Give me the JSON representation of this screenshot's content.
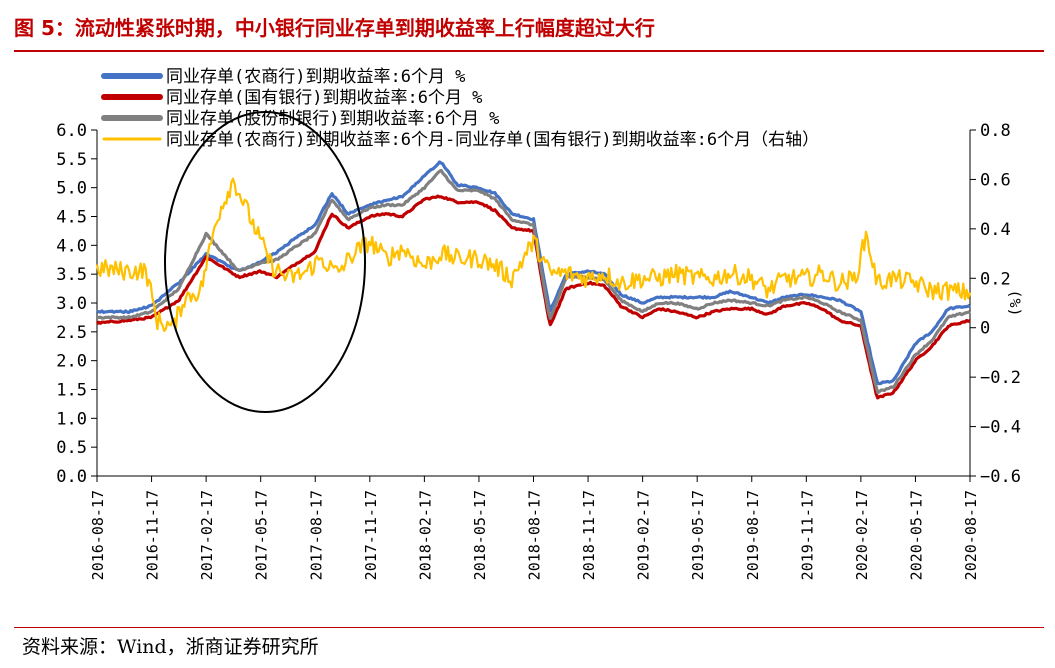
{
  "figure": {
    "title": "图 5：流动性紧张时期，中小银行同业存单到期收益率上行幅度超过大行",
    "source": "资料来源：Wind，浙商证券研究所"
  },
  "chart_data": {
    "type": "line",
    "x_tick_labels": [
      "2016-08-17",
      "2016-11-17",
      "2017-02-17",
      "2017-05-17",
      "2017-08-17",
      "2017-11-17",
      "2018-02-17",
      "2018-05-17",
      "2018-08-17",
      "2018-11-17",
      "2019-02-17",
      "2019-05-17",
      "2019-08-17",
      "2019-11-17",
      "2020-02-17",
      "2020-05-17",
      "2020-08-17"
    ],
    "y_left": {
      "range": [
        0,
        6
      ],
      "ticks": [
        "0.0",
        "0.5",
        "1.0",
        "1.5",
        "2.0",
        "2.5",
        "3.0",
        "3.5",
        "4.0",
        "4.5",
        "5.0",
        "5.5",
        "6.0"
      ]
    },
    "y_right": {
      "range": [
        -0.6,
        0.8
      ],
      "ticks": [
        "0.8",
        "0.6",
        "0.4",
        "0.2",
        "0",
        "−0.2",
        "−0.4",
        "−0.6"
      ],
      "label": "(%)"
    },
    "annotation": "circled region around 2016-12 to 2017-11",
    "series": [
      {
        "name": "同业存单(农商行)到期收益率:6个月 %",
        "color": "#4472c4",
        "axis": "left",
        "t": [
          0,
          0.6,
          1,
          1.5,
          2,
          2.6,
          3,
          3.3,
          3.6,
          4,
          4.3,
          4.6,
          5,
          5.3,
          5.6,
          6,
          6.3,
          6.6,
          7,
          7.3,
          7.6,
          8,
          8.3,
          8.6,
          9,
          9.3,
          9.6,
          10,
          10.3,
          10.6,
          11,
          11.3,
          11.6,
          12,
          12.3,
          12.6,
          13,
          13.3,
          13.6,
          14,
          14.3,
          14.6,
          15,
          15.3,
          15.6,
          16
        ],
        "values": [
          2.85,
          2.85,
          2.95,
          3.35,
          3.85,
          3.55,
          3.72,
          3.88,
          4.1,
          4.35,
          4.9,
          4.55,
          4.7,
          4.78,
          4.85,
          5.2,
          5.45,
          5.05,
          5.0,
          4.9,
          4.55,
          4.45,
          2.85,
          3.5,
          3.55,
          3.5,
          3.15,
          3.0,
          3.1,
          3.1,
          3.1,
          3.1,
          3.2,
          3.1,
          3.0,
          3.1,
          3.15,
          3.1,
          3.05,
          2.85,
          1.6,
          1.65,
          2.3,
          2.5,
          2.9,
          2.95
        ]
      },
      {
        "name": "同业存单(国有银行)到期收益率:6个月 %",
        "color": "#c00000",
        "axis": "left",
        "t": [
          0,
          0.6,
          1,
          1.5,
          2,
          2.6,
          3,
          3.3,
          3.6,
          4,
          4.3,
          4.6,
          5,
          5.3,
          5.6,
          6,
          6.3,
          6.6,
          7,
          7.3,
          7.6,
          8,
          8.3,
          8.6,
          9,
          9.3,
          9.6,
          10,
          10.3,
          10.6,
          11,
          11.3,
          11.6,
          12,
          12.3,
          12.6,
          13,
          13.3,
          13.6,
          14,
          14.3,
          14.6,
          15,
          15.3,
          15.6,
          16
        ],
        "values": [
          2.65,
          2.7,
          2.75,
          3.05,
          3.8,
          3.45,
          3.55,
          3.45,
          3.65,
          3.9,
          4.55,
          4.3,
          4.5,
          4.55,
          4.5,
          4.8,
          4.85,
          4.75,
          4.75,
          4.6,
          4.3,
          4.25,
          2.6,
          3.25,
          3.35,
          3.3,
          2.95,
          2.75,
          2.9,
          2.85,
          2.75,
          2.85,
          2.9,
          2.9,
          2.8,
          2.95,
          3.0,
          2.9,
          2.7,
          2.6,
          1.35,
          1.45,
          2.0,
          2.25,
          2.6,
          2.7
        ]
      },
      {
        "name": "同业存单(股份制银行)到期收益率:6个月 %",
        "color": "#808080",
        "axis": "left",
        "t": [
          0,
          0.6,
          1,
          1.5,
          2,
          2.6,
          3,
          3.3,
          3.6,
          4,
          4.3,
          4.6,
          5,
          5.3,
          5.6,
          6,
          6.3,
          6.6,
          7,
          7.3,
          7.6,
          8,
          8.3,
          8.6,
          9,
          9.3,
          9.6,
          10,
          10.3,
          10.6,
          11,
          11.3,
          11.6,
          12,
          12.3,
          12.6,
          13,
          13.3,
          13.6,
          14,
          14.3,
          14.6,
          15,
          15.3,
          15.6,
          16
        ],
        "values": [
          2.75,
          2.75,
          2.85,
          3.25,
          4.2,
          3.55,
          3.7,
          3.75,
          3.95,
          4.2,
          4.8,
          4.45,
          4.65,
          4.7,
          4.7,
          5.0,
          5.3,
          4.95,
          4.95,
          4.8,
          4.45,
          4.35,
          2.7,
          3.45,
          3.45,
          3.4,
          3.05,
          2.85,
          3.0,
          3.0,
          2.9,
          3.0,
          3.05,
          3.0,
          2.95,
          3.05,
          3.1,
          3.0,
          2.85,
          2.7,
          1.45,
          1.55,
          2.1,
          2.35,
          2.75,
          2.85
        ]
      },
      {
        "name": "同业存单(农商行)到期收益率:6个月-同业存单(国有银行)到期收益率:6个月（右轴）",
        "color": "#ffc000",
        "axis": "right",
        "t": [
          0,
          0.5,
          0.9,
          1.1,
          1.4,
          1.6,
          1.9,
          2.2,
          2.5,
          2.9,
          3.2,
          3.5,
          3.8,
          4.1,
          4.4,
          4.7,
          5.0,
          5.3,
          5.6,
          6.0,
          6.3,
          6.6,
          7.0,
          7.3,
          7.6,
          8.0,
          8.3,
          8.6,
          9.0,
          9.3,
          9.6,
          10,
          10.3,
          10.6,
          11,
          11.3,
          11.6,
          12,
          12.3,
          12.6,
          13,
          13.3,
          13.6,
          13.9,
          14.1,
          14.3,
          14.6,
          15,
          15.3,
          15.6,
          16
        ],
        "values": [
          0.24,
          0.23,
          0.23,
          0.03,
          0.0,
          0.12,
          0.15,
          0.45,
          0.6,
          0.4,
          0.25,
          0.2,
          0.22,
          0.28,
          0.22,
          0.3,
          0.35,
          0.28,
          0.32,
          0.25,
          0.3,
          0.28,
          0.28,
          0.25,
          0.2,
          0.35,
          0.22,
          0.22,
          0.2,
          0.22,
          0.18,
          0.2,
          0.2,
          0.22,
          0.2,
          0.2,
          0.22,
          0.2,
          0.15,
          0.2,
          0.2,
          0.22,
          0.18,
          0.2,
          0.38,
          0.18,
          0.2,
          0.18,
          0.15,
          0.15,
          0.14
        ]
      }
    ]
  }
}
